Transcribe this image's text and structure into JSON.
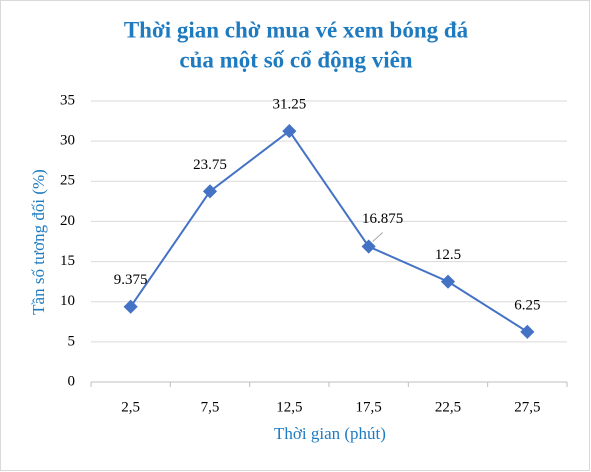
{
  "chart_data": {
    "type": "line",
    "title": [
      "Thời gian chờ mua vé xem bóng đá",
      "của một số cổ động viên"
    ],
    "x_label": "Thời gian (phút)",
    "y_label": "Tần số tương đối (%)",
    "categories": [
      "2,5",
      "7,5",
      "12,5",
      "17,5",
      "22,5",
      "27,5"
    ],
    "values": [
      9.375,
      23.75,
      31.25,
      16.875,
      12.5,
      6.25
    ],
    "color": "#4472c4",
    "ylim": [
      0,
      35
    ],
    "yticks": [
      0,
      5,
      10,
      15,
      20,
      25,
      30,
      35
    ],
    "grid": true
  }
}
